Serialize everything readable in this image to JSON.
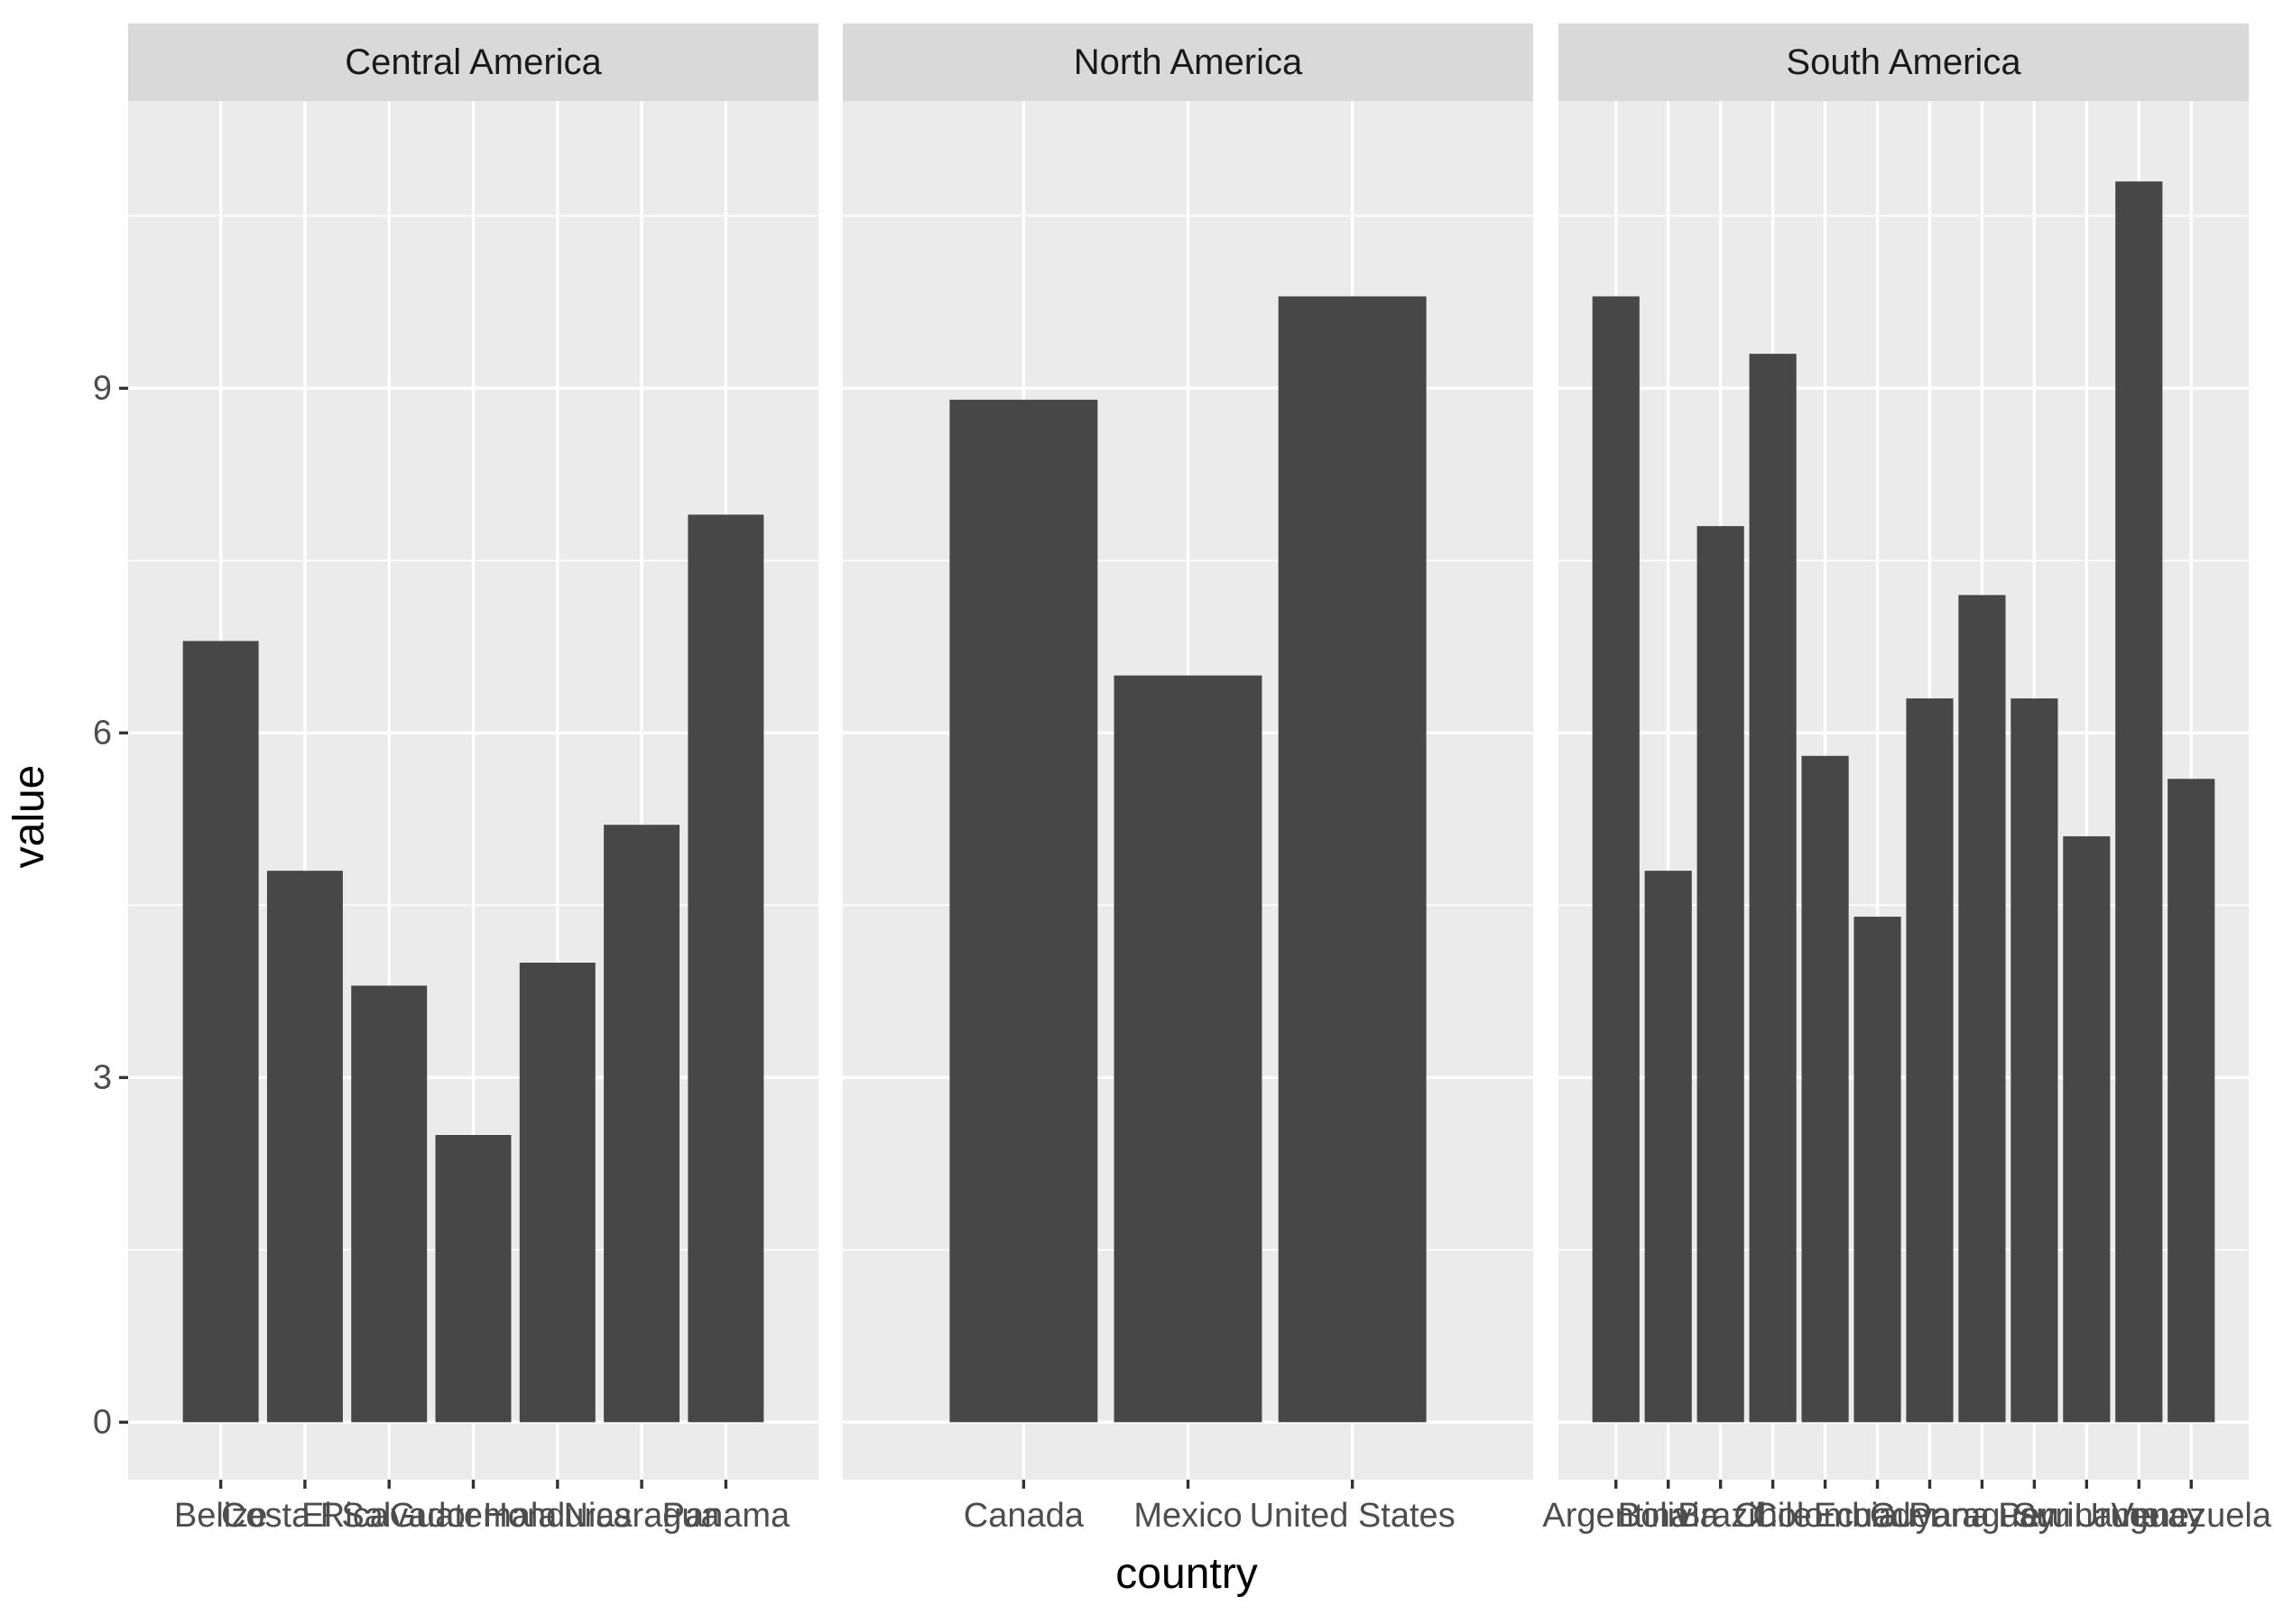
{
  "chart_data": {
    "type": "bar",
    "xlabel": "country",
    "ylabel": "value",
    "ylim": [
      -0.5,
      11.5
    ],
    "y_ticks": [
      0,
      3,
      6,
      9
    ],
    "grid": true,
    "facets": [
      {
        "title": "Central America",
        "categories": [
          "Belize",
          "Costa Rica",
          "El Salvador",
          "Guatemala",
          "Honduras",
          "Nicaragua",
          "Panama"
        ],
        "values": [
          6.8,
          4.8,
          3.8,
          2.5,
          4.0,
          5.2,
          7.9
        ]
      },
      {
        "title": "North America",
        "categories": [
          "Canada",
          "Mexico",
          "United States"
        ],
        "values": [
          8.9,
          6.5,
          9.8
        ]
      },
      {
        "title": "South America",
        "categories": [
          "Argentina",
          "Bolivia",
          "Brazil",
          "Chile",
          "Colombia",
          "Ecuador",
          "Guyana",
          "Paraguay",
          "Peru",
          "Suriname",
          "Uruguay",
          "Venezuela"
        ],
        "values": [
          9.8,
          4.8,
          7.8,
          9.3,
          5.8,
          4.4,
          6.3,
          7.2,
          6.3,
          5.1,
          10.8,
          5.6
        ]
      }
    ]
  }
}
